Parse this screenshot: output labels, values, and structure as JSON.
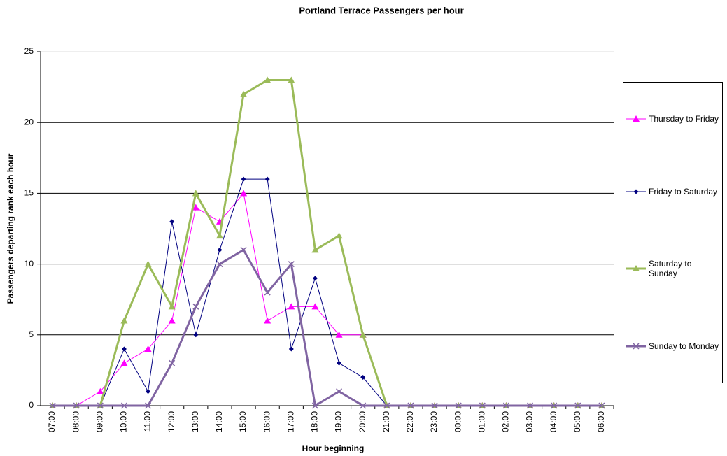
{
  "chart_data": {
    "type": "line",
    "title": "Portland Terrace Passengers per hour",
    "x_label": "Hour beginning",
    "y_label": "Passengers departing rank each hour",
    "categories": [
      "07:00",
      "08:00",
      "09:00",
      "10:00",
      "11:00",
      "12:00",
      "13:00",
      "14:00",
      "15:00",
      "16:00",
      "17:00",
      "18:00",
      "19:00",
      "20:00",
      "21:00",
      "22:00",
      "23:00",
      "00:00",
      "01:00",
      "02:00",
      "03:00",
      "04:00",
      "05:00",
      "06:00"
    ],
    "series": [
      {
        "name": "Thursday to Friday",
        "color": "#ff00ff",
        "marker": "triangle",
        "line_width": 1,
        "values": [
          0,
          0,
          1,
          3,
          4,
          6,
          14,
          13,
          15,
          6,
          7,
          7,
          5,
          5,
          0,
          0,
          0,
          0,
          0,
          0,
          0,
          0,
          0,
          0
        ]
      },
      {
        "name": "Friday to Saturday",
        "color": "#000080",
        "marker": "diamond",
        "line_width": 1,
        "values": [
          0,
          0,
          0,
          4,
          1,
          13,
          5,
          11,
          16,
          16,
          4,
          9,
          3,
          2,
          0,
          0,
          0,
          0,
          0,
          0,
          0,
          0,
          0,
          0
        ]
      },
      {
        "name": "Saturday to Sunday",
        "color": "#9bbb59",
        "marker": "triangle",
        "line_width": 3,
        "values": [
          0,
          0,
          0,
          6,
          10,
          7,
          15,
          12,
          22,
          23,
          23,
          11,
          12,
          5,
          0,
          0,
          0,
          0,
          0,
          0,
          0,
          0,
          0,
          0
        ]
      },
      {
        "name": "Sunday to Monday",
        "color": "#8064a2",
        "marker": "x",
        "line_width": 3,
        "values": [
          0,
          0,
          0,
          0,
          0,
          3,
          7,
          10,
          11,
          8,
          10,
          0,
          1,
          0,
          0,
          0,
          0,
          0,
          0,
          0,
          0,
          0,
          0,
          0
        ]
      }
    ],
    "ylim": [
      0,
      25
    ],
    "yticks": [
      0,
      5,
      10,
      15,
      20,
      25
    ],
    "grid": true,
    "legend": "right"
  }
}
